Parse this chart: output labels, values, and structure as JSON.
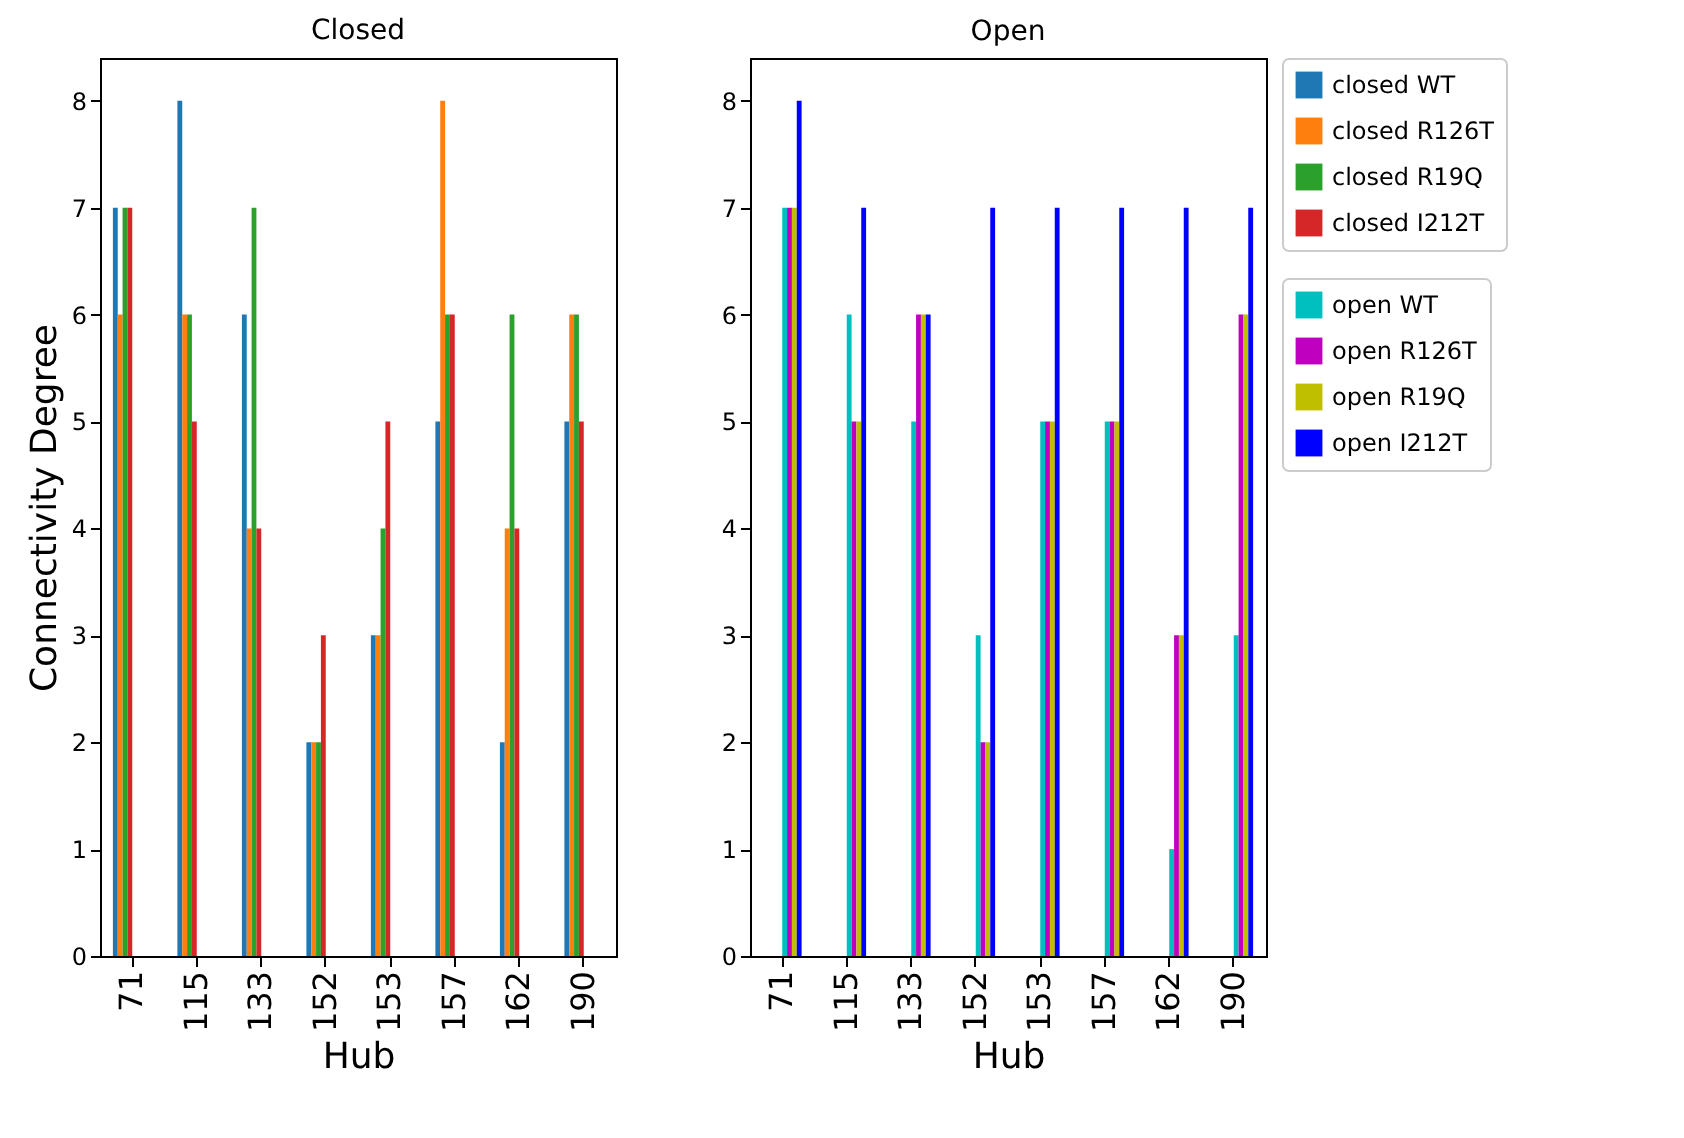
{
  "chart_data": [
    {
      "type": "bar",
      "title": "Closed",
      "xlabel": "Hub",
      "ylabel": "Connectivity Degree",
      "categories": [
        "71",
        "115",
        "133",
        "152",
        "153",
        "157",
        "162",
        "190"
      ],
      "ylim": [
        0,
        8.4
      ],
      "yticks": [
        0,
        1,
        2,
        3,
        4,
        5,
        6,
        7,
        8
      ],
      "grid": false,
      "legend": "right",
      "series": [
        {
          "name": "closed WT",
          "color": "#1f77b4",
          "values": [
            7,
            8,
            6,
            2,
            3,
            5,
            2,
            5
          ]
        },
        {
          "name": "closed R126T",
          "color": "#ff7f0e",
          "values": [
            6,
            6,
            4,
            2,
            3,
            8,
            4,
            6
          ]
        },
        {
          "name": "closed R19Q",
          "color": "#2ca02c",
          "values": [
            7,
            6,
            7,
            2,
            4,
            6,
            6,
            6
          ]
        },
        {
          "name": "closed I212T",
          "color": "#d62728",
          "values": [
            7,
            5,
            4,
            3,
            5,
            6,
            4,
            5
          ]
        }
      ]
    },
    {
      "type": "bar",
      "title": "Open",
      "xlabel": "Hub",
      "categories": [
        "71",
        "115",
        "133",
        "152",
        "153",
        "157",
        "162",
        "190"
      ],
      "ylim": [
        0,
        8.4
      ],
      "yticks": [
        0,
        1,
        2,
        3,
        4,
        5,
        6,
        7,
        8
      ],
      "grid": false,
      "legend": "right",
      "series": [
        {
          "name": "open WT",
          "color": "#00bfbf",
          "values": [
            7,
            6,
            5,
            3,
            5,
            5,
            1,
            3
          ]
        },
        {
          "name": "open R126T",
          "color": "#bf00bf",
          "values": [
            7,
            5,
            6,
            2,
            5,
            5,
            3,
            6
          ]
        },
        {
          "name": "open R19Q",
          "color": "#bfbf00",
          "values": [
            7,
            5,
            6,
            2,
            5,
            5,
            3,
            6
          ]
        },
        {
          "name": "open I212T",
          "color": "#0000ff",
          "values": [
            8,
            7,
            6,
            7,
            7,
            7,
            7,
            7
          ]
        }
      ]
    }
  ]
}
